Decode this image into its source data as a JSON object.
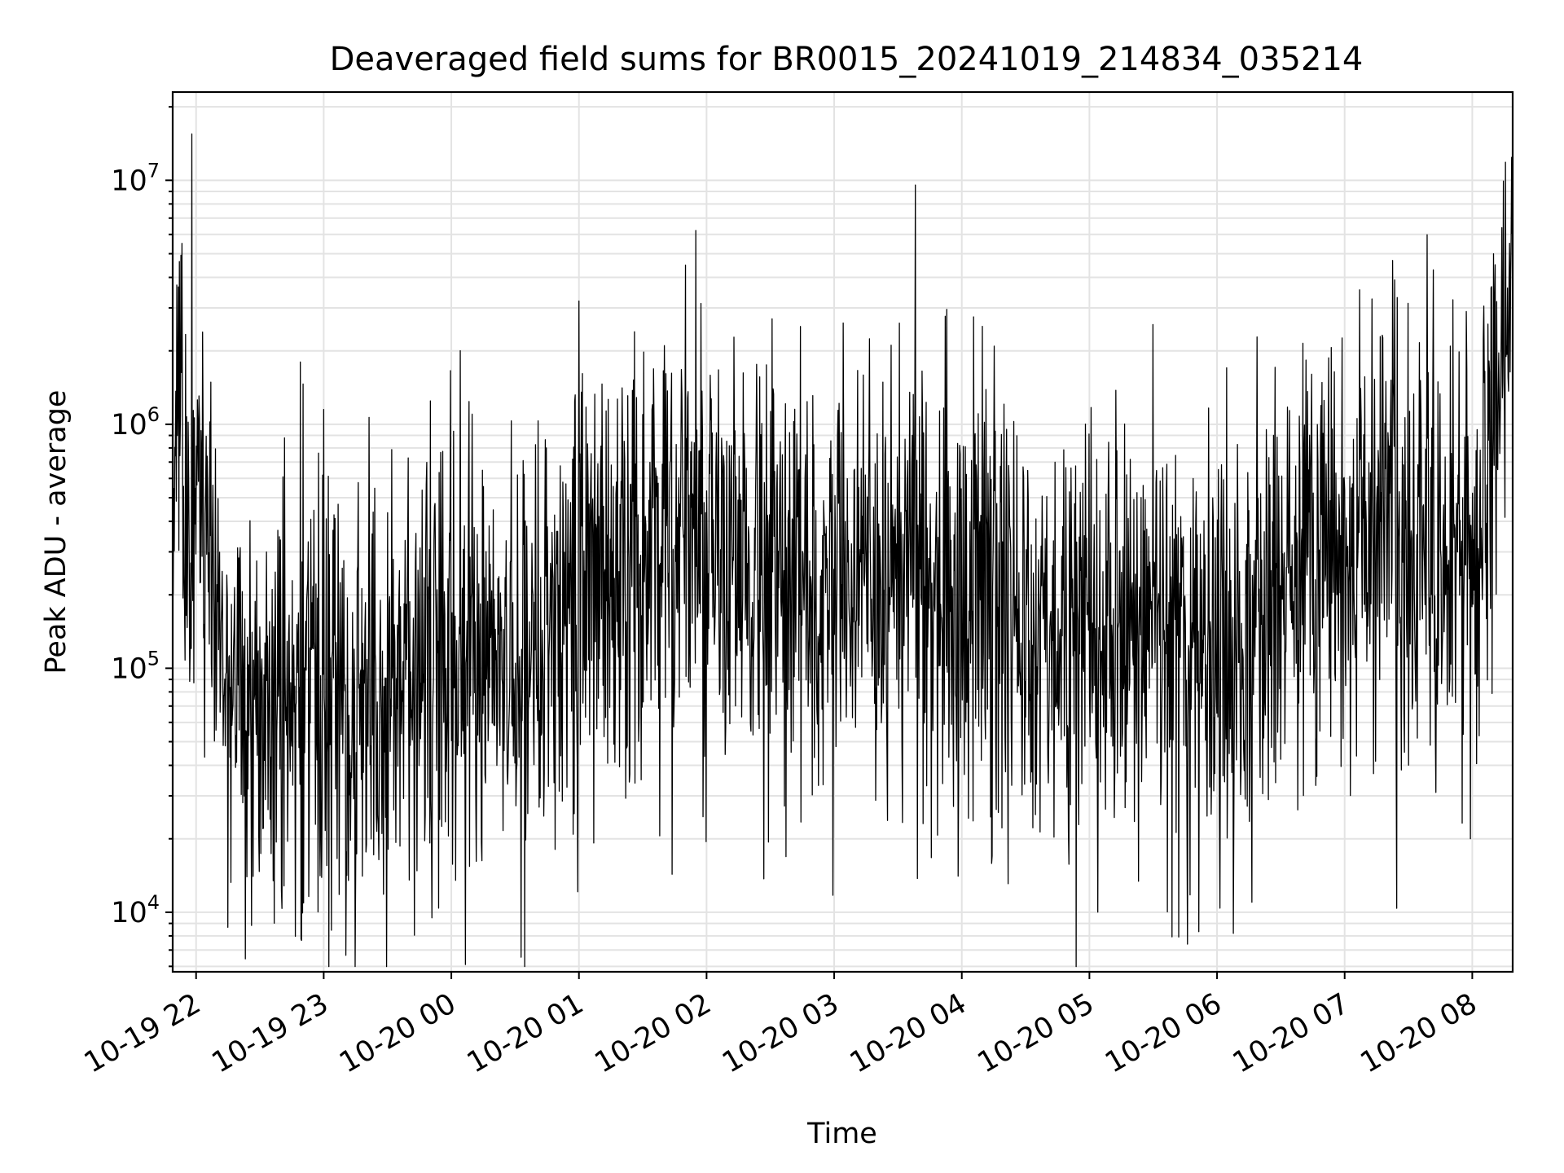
{
  "chart_data": {
    "type": "line",
    "title": "Deaveraged field sums for BR0015_20241019_214834_035214",
    "xlabel": "Time",
    "ylabel": "Peak ADU - average",
    "yscale": "log",
    "grid": true,
    "grid_minor": true,
    "legend": "none",
    "line_color": "#000000",
    "xlim": [
      "2024-10-19 21:49",
      "2024-10-20 08:19"
    ],
    "ylim": [
      5700,
      23000000
    ],
    "x_ticks": [
      {
        "value": "2024-10-19 22:00",
        "label": "10-19 22"
      },
      {
        "value": "2024-10-19 23:00",
        "label": "10-19 23"
      },
      {
        "value": "2024-10-20 00:00",
        "label": "10-20 00"
      },
      {
        "value": "2024-10-20 01:00",
        "label": "10-20 01"
      },
      {
        "value": "2024-10-20 02:00",
        "label": "10-20 02"
      },
      {
        "value": "2024-10-20 03:00",
        "label": "10-20 03"
      },
      {
        "value": "2024-10-20 04:00",
        "label": "10-20 04"
      },
      {
        "value": "2024-10-20 05:00",
        "label": "10-20 05"
      },
      {
        "value": "2024-10-20 06:00",
        "label": "10-20 06"
      },
      {
        "value": "2024-10-20 07:00",
        "label": "10-20 07"
      },
      {
        "value": "2024-10-20 08:00",
        "label": "10-20 08"
      }
    ],
    "y_ticks": [
      {
        "value": 10000,
        "base": "10",
        "exp": "4"
      },
      {
        "value": 100000,
        "base": "10",
        "exp": "5"
      },
      {
        "value": 1000000,
        "base": "10",
        "exp": "6"
      },
      {
        "value": 10000000,
        "base": "10",
        "exp": "7"
      }
    ],
    "series": [
      {
        "x": [
          "2024-10-19 21:49",
          "2024-10-19 21:53",
          "2024-10-19 21:56",
          "2024-10-19 21:58",
          "2024-10-19 22:00",
          "2024-10-19 22:03",
          "2024-10-19 22:06",
          "2024-10-19 22:10",
          "2024-10-19 22:13",
          "2024-10-19 22:18",
          "2024-10-19 22:24",
          "2024-10-19 22:30",
          "2024-10-19 22:36",
          "2024-10-19 22:42",
          "2024-10-19 22:48",
          "2024-10-19 22:49",
          "2024-10-19 22:52",
          "2024-10-19 22:55",
          "2024-10-19 22:59",
          "2024-10-19 23:00",
          "2024-10-19 23:05",
          "2024-10-19 23:15",
          "2024-10-19 23:25",
          "2024-10-19 23:35",
          "2024-10-19 23:45",
          "2024-10-19 23:55",
          "2024-10-20 00:10",
          "2024-10-20 00:25",
          "2024-10-20 00:35",
          "2024-10-20 00:45",
          "2024-10-20 00:55",
          "2024-10-20 00:59",
          "2024-10-20 01:00",
          "2024-10-20 01:02",
          "2024-10-20 01:10",
          "2024-10-20 01:20",
          "2024-10-20 01:35",
          "2024-10-20 01:50",
          "2024-10-20 02:05",
          "2024-10-20 02:20",
          "2024-10-20 02:35",
          "2024-10-20 02:50",
          "2024-10-20 03:05",
          "2024-10-20 03:20",
          "2024-10-20 03:35",
          "2024-10-20 03:50",
          "2024-10-20 04:05",
          "2024-10-20 04:20",
          "2024-10-20 04:35",
          "2024-10-20 04:50",
          "2024-10-20 05:05",
          "2024-10-20 05:20",
          "2024-10-20 05:35",
          "2024-10-20 05:50",
          "2024-10-20 06:05",
          "2024-10-20 06:20",
          "2024-10-20 06:35",
          "2024-10-20 06:50",
          "2024-10-20 07:05",
          "2024-10-20 07:20",
          "2024-10-20 07:35",
          "2024-10-20 07:50",
          "2024-10-20 08:00",
          "2024-10-20 08:06",
          "2024-10-20 08:10",
          "2024-10-20 08:14",
          "2024-10-20 08:19"
        ],
        "y": [
          1000000,
          1100000,
          600000,
          15500000,
          700000,
          450000,
          300000,
          200000,
          130000,
          80000,
          75000,
          90000,
          70000,
          65000,
          70000,
          1800000,
          80000,
          95000,
          90000,
          1150000,
          95000,
          100000,
          95000,
          90000,
          100000,
          110000,
          115000,
          110000,
          100000,
          130000,
          190000,
          250000,
          3200000,
          260000,
          280000,
          290000,
          300000,
          280000,
          260000,
          250000,
          240000,
          230000,
          230000,
          240000,
          220000,
          210000,
          200000,
          180000,
          170000,
          160000,
          150000,
          140000,
          140000,
          130000,
          140000,
          170000,
          230000,
          300000,
          320000,
          310000,
          300000,
          280000,
          290000,
          500000,
          5000000,
          1500000,
          2800000
        ]
      }
    ]
  }
}
